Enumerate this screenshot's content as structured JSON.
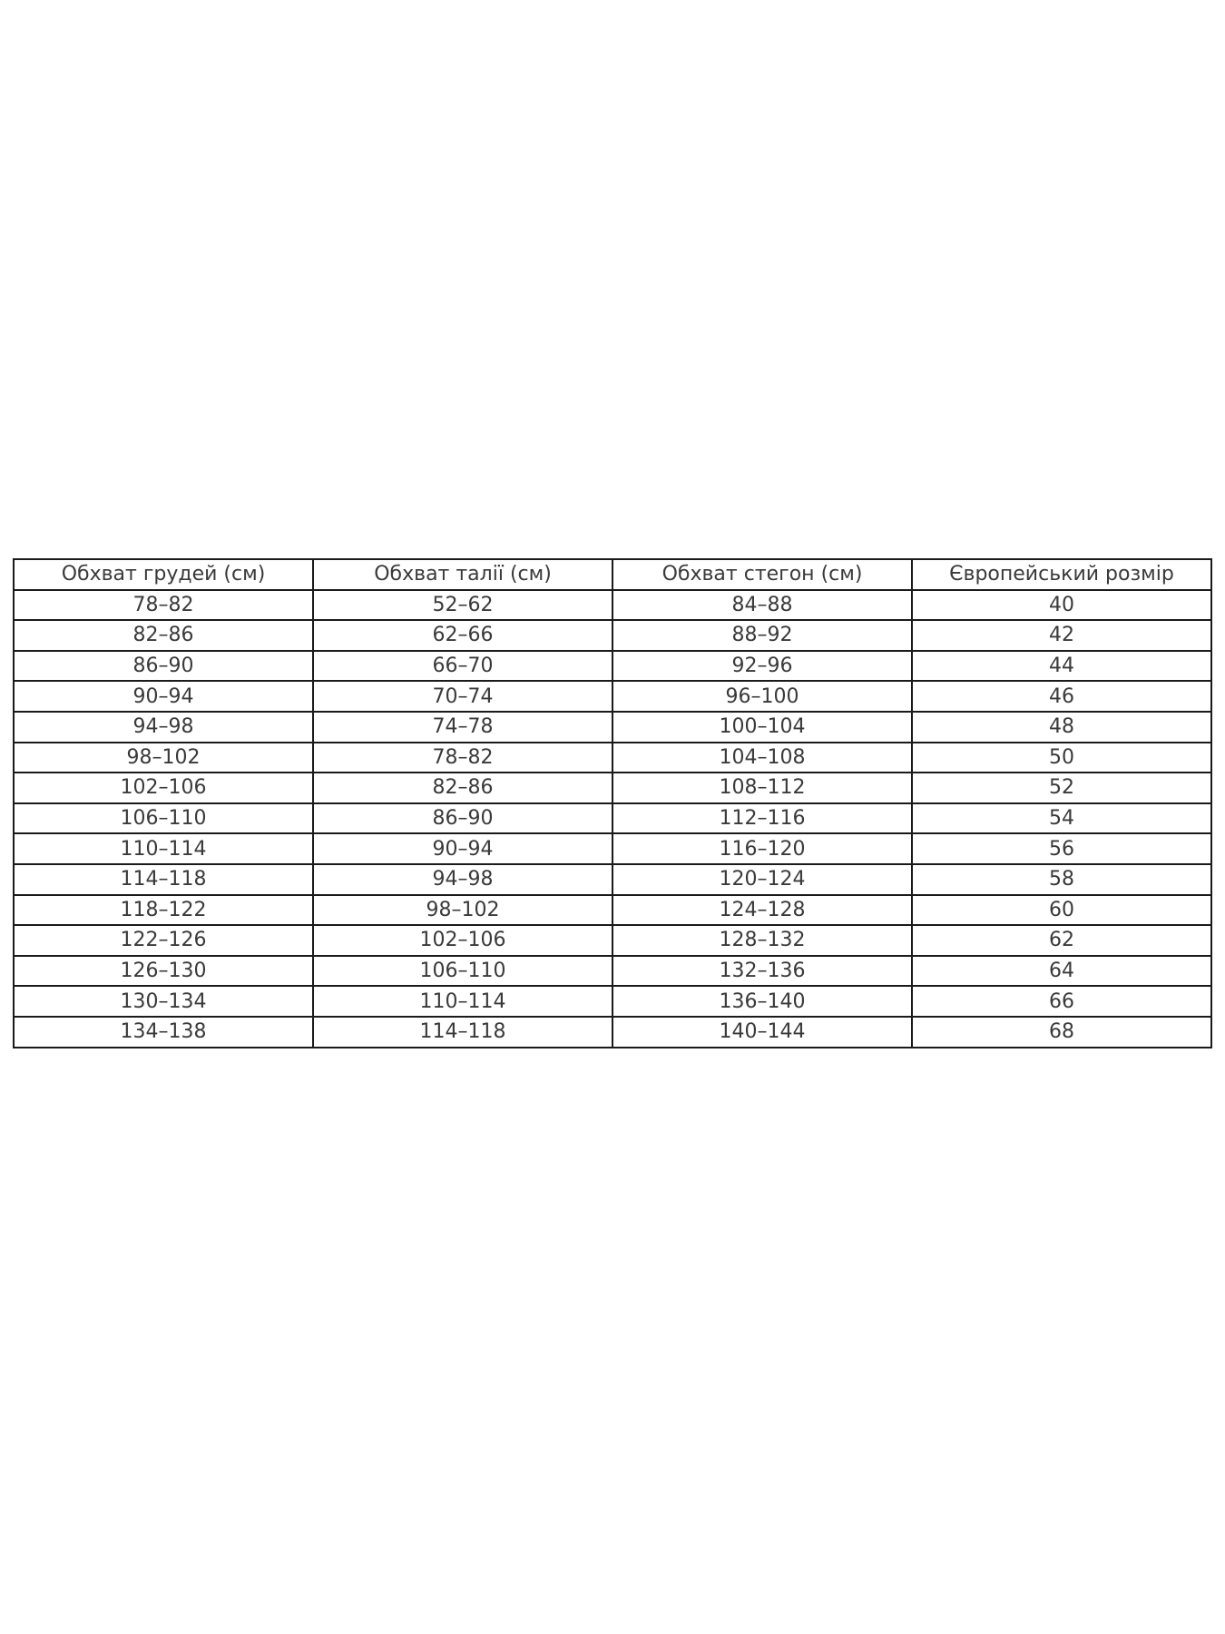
{
  "table": {
    "headers": [
      "Обхват грудей (см)",
      "Обхват талії (см)",
      "Обхват стегон (см)",
      "Європейський розмір"
    ],
    "rows": [
      [
        "78–82",
        "52–62",
        "84–88",
        "40"
      ],
      [
        "82–86",
        "62–66",
        "88–92",
        "42"
      ],
      [
        "86–90",
        "66–70",
        "92–96",
        "44"
      ],
      [
        "90–94",
        "70–74",
        "96–100",
        "46"
      ],
      [
        "94–98",
        "74–78",
        "100–104",
        "48"
      ],
      [
        "98–102",
        "78–82",
        "104–108",
        "50"
      ],
      [
        "102–106",
        "82–86",
        "108–112",
        "52"
      ],
      [
        "106–110",
        "86–90",
        "112–116",
        "54"
      ],
      [
        "110–114",
        "90–94",
        "116–120",
        "56"
      ],
      [
        "114–118",
        "94–98",
        "120–124",
        "58"
      ],
      [
        "118–122",
        "98–102",
        "124–128",
        "60"
      ],
      [
        "122–126",
        "102–106",
        "128–132",
        "62"
      ],
      [
        "126–130",
        "106–110",
        "132–136",
        "64"
      ],
      [
        "130–134",
        "110–114",
        "136–140",
        "66"
      ],
      [
        "134–138",
        "114–118",
        "140–144",
        "68"
      ]
    ]
  }
}
